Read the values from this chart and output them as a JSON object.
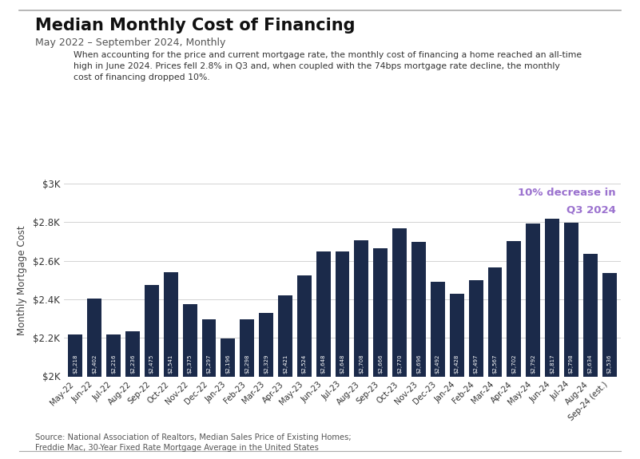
{
  "title": "Median Monthly Cost of Financing",
  "subtitle": "May 2022 – September 2024, Monthly",
  "annotation_line1": "When accounting for the price and current mortgage rate, the monthly cost of financing a home reached an all-time",
  "annotation_line2": "high in June 2024. Prices fell 2.8% in Q3 and, when coupled with the 74bps mortgage rate decline, the monthly",
  "annotation_line3": "cost of financing dropped 10%.",
  "annotation2_line1": "10% decrease in",
  "annotation2_line2": "Q3 2024",
  "annotation2_color": "#9b72cf",
  "ylabel": "Monthly Mortgage Cost",
  "source_line1": "Source: National Association of Realtors, Median Sales Price of Existing Homes;",
  "source_line2": "Freddie Mac, 30-Year Fixed Rate Mortgage Average in the United States",
  "bar_color": "#1b2a4a",
  "background_color": "#ffffff",
  "ylim_min": 2000,
  "ylim_max": 3000,
  "ytick_labels": [
    "$2K",
    "$2.2K",
    "$2.4K",
    "$2.6K",
    "$2.8K",
    "$3K"
  ],
  "ytick_values": [
    2000,
    2200,
    2400,
    2600,
    2800,
    3000
  ],
  "categories": [
    "May-22",
    "Jun-22",
    "Jul-22",
    "Aug-22",
    "Sep-22",
    "Oct-22",
    "Nov-22",
    "Dec-22",
    "Jan-23",
    "Feb-23",
    "Mar-23",
    "Apr-23",
    "May-23",
    "Jun-23",
    "Jul-23",
    "Aug-23",
    "Sep-23",
    "Oct-23",
    "Nov-23",
    "Dec-23",
    "Jan-24",
    "Feb-24",
    "Mar-24",
    "Apr-24",
    "May-24",
    "Jun-24",
    "Jul-24",
    "Aug-24",
    "Sep-24 (est.)"
  ],
  "values": [
    2218,
    2402,
    2216,
    2236,
    2475,
    2541,
    2375,
    2297,
    2196,
    2298,
    2329,
    2421,
    2524,
    2648,
    2648,
    2708,
    2666,
    2770,
    2696,
    2492,
    2428,
    2497,
    2567,
    2702,
    2792,
    2817,
    2798,
    2634,
    2536
  ],
  "value_labels": [
    "$2,218",
    "$2,402",
    "$2,216",
    "$2,236",
    "$2,475",
    "$2,541",
    "$2,375",
    "$2,297",
    "$2,196",
    "$2,298",
    "$2,329",
    "$2,421",
    "$2,524",
    "$2,648",
    "$2,648",
    "$2,708",
    "$2,666",
    "$2,770",
    "$2,696",
    "$2,492",
    "$2,428",
    "$2,497",
    "$2,567",
    "$2,702",
    "$2,792",
    "$2,817",
    "$2,798",
    "$2,634",
    "$2,536"
  ]
}
